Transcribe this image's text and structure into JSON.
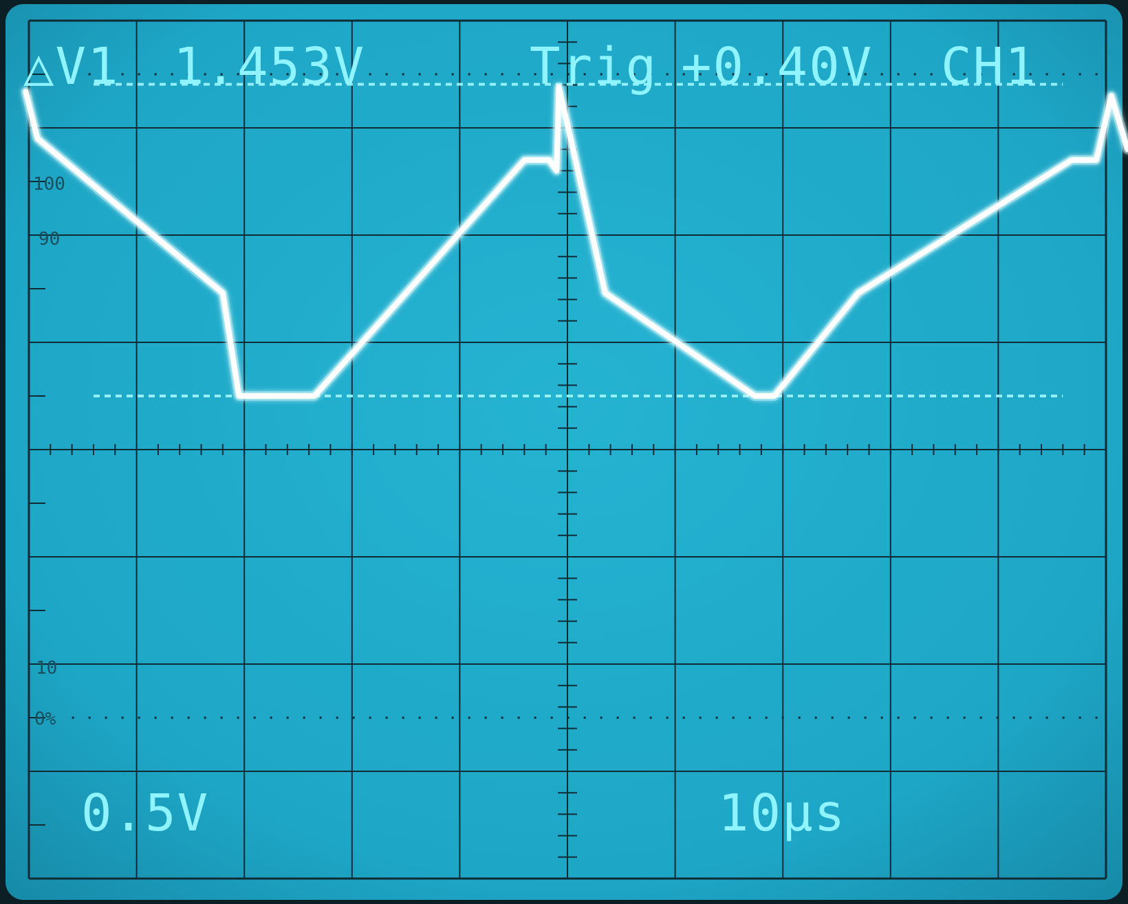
{
  "window": {
    "colors": {
      "bezel": "#0b1f24",
      "screen": "#1ea6c6",
      "screen_edge": "#178aa6",
      "grid": "#0f2b35",
      "trace": "#ffffff",
      "trace_glow": "#bffaff",
      "cursor": "#9ff8ff",
      "text": "#8ff4ff"
    }
  },
  "readouts": {
    "delta_v": "△V1",
    "delta_v_value": "1.453V",
    "trig_label": "Trig",
    "trig_value": "+0.40V",
    "channel": "CH1",
    "volts_per_div": "0.5V",
    "time_per_div": "10µs"
  },
  "graticule_labels": {
    "p100": "100",
    "p90": "90",
    "p10": "10",
    "p0": "0%"
  },
  "chart_data": {
    "type": "line",
    "xlabel": "",
    "ylabel": "",
    "volts_per_div": 0.5,
    "time_per_div_us": 10,
    "divisions_x": 10,
    "divisions_y": 8,
    "xlim": [
      0,
      100
    ],
    "ylim": [
      -2.25,
      1.75
    ],
    "cursor_levels_v": [
      1.453,
      0
    ],
    "series": [
      {
        "values_x_us": [
          -0.3,
          0.8,
          18.0,
          19.5,
          26.5,
          46.0,
          48.3,
          49.0,
          49.2,
          50.3,
          53.5,
          67.4,
          69.2,
          77.0,
          96.8,
          99.1,
          100.5,
          102.0
        ],
        "values_v": [
          1.42,
          1.2,
          0.48,
          0.0,
          0.0,
          1.1,
          1.1,
          1.05,
          1.44,
          1.2,
          0.48,
          0.0,
          0.0,
          0.48,
          1.1,
          1.1,
          1.4,
          1.15
        ]
      }
    ]
  }
}
